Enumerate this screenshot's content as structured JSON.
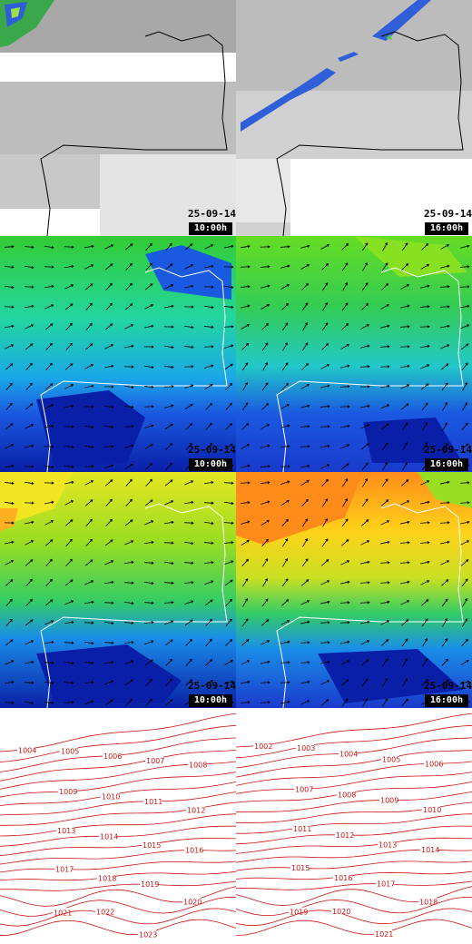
{
  "panels": [
    {
      "row": "cloud",
      "date": "25-09-14",
      "time": "10:00h"
    },
    {
      "row": "cloud",
      "date": "25-09-14",
      "time": "16:00h"
    },
    {
      "row": "wind",
      "date": "25-09-14",
      "time": "10:00h"
    },
    {
      "row": "wind",
      "date": "25-09-14",
      "time": "16:00h"
    },
    {
      "row": "gust",
      "date": "25-09-14",
      "time": "10:00h"
    },
    {
      "row": "gust",
      "date": "25-09-14",
      "time": "16:00h"
    }
  ],
  "isobars": {
    "left": [
      "1004",
      "1005",
      "1006",
      "1007",
      "1008",
      "1009",
      "1010",
      "1011",
      "1012",
      "1013",
      "1014",
      "1015",
      "1016",
      "1017",
      "1018",
      "1019",
      "1020",
      "1021",
      "1022",
      "1023"
    ],
    "right": [
      "1002",
      "1003",
      "1004",
      "1005",
      "1006",
      "1007",
      "1008",
      "1009",
      "1010",
      "1011",
      "1012",
      "1013",
      "1014",
      "1015",
      "1016",
      "1017",
      "1018",
      "1019",
      "1020",
      "1021"
    ]
  },
  "colors": {
    "isobar": "#cc1111",
    "coast": "#ffffff",
    "cloud_high": "#2f5fd8",
    "wind_low": "#0a1fa8",
    "wind_high": "#ff8c1a"
  }
}
